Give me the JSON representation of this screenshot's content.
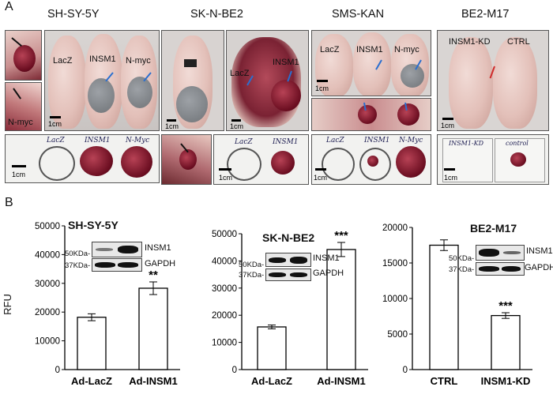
{
  "panel_labels": {
    "a": "A",
    "b": "B"
  },
  "panel_a": {
    "columns": [
      {
        "title": "SH-SY-5Y",
        "mouse_labels": [
          "LacZ",
          "INSM1",
          "N-myc"
        ],
        "inset_label": "N-myc",
        "tube_labels": [
          "LacZ",
          "INSM1",
          "N-Myc"
        ],
        "scale": "1cm"
      },
      {
        "title": "SK-N-BE2",
        "mouse_labels": [
          "LacZ",
          "INSM1"
        ],
        "tube_labels": [
          "LacZ",
          "INSM1"
        ],
        "scale": "1cm"
      },
      {
        "title": "SMS-KAN",
        "mouse_labels": [
          "LacZ",
          "INSM1",
          "N-myc"
        ],
        "tube_labels": [
          "LacZ",
          "INSM1",
          "N-Myc"
        ],
        "scale": "1cm"
      },
      {
        "title": "BE2-M17",
        "mouse_labels": [
          "INSM1-KD",
          "CTRL"
        ],
        "tube_labels": [
          "INSM1-KD",
          "control"
        ],
        "scale": "1cm"
      }
    ]
  },
  "panel_b": {
    "ylabel": "RFU",
    "blot_labels": {
      "insm1": "INSM1",
      "gapdh": "GAPDH",
      "kda50": "50KDa-",
      "kda37": "37KDa-"
    }
  },
  "chart_data": [
    {
      "type": "bar",
      "title": "SH-SY-5Y",
      "categories": [
        "Ad-LacZ",
        "Ad-INSM1"
      ],
      "values": [
        18200,
        28300
      ],
      "errors": [
        1200,
        2200
      ],
      "significance": [
        "",
        "**"
      ],
      "ylabel": "RFU",
      "ylim": [
        0,
        50000
      ],
      "yticks": [
        "0",
        "10000",
        "20000",
        "30000",
        "40000",
        "50000"
      ],
      "ytick_values": [
        0,
        10000,
        20000,
        30000,
        40000,
        50000
      ]
    },
    {
      "type": "bar",
      "title": "SK-N-BE2",
      "categories": [
        "Ad-LacZ",
        "Ad-INSM1"
      ],
      "values": [
        15700,
        44200
      ],
      "errors": [
        700,
        2600
      ],
      "significance": [
        "",
        "***"
      ],
      "ylabel": "",
      "ylim": [
        0,
        50000
      ],
      "yticks": [
        "0",
        "10000",
        "20000",
        "30000",
        "40000",
        "50000"
      ],
      "ytick_values": [
        0,
        10000,
        20000,
        30000,
        40000,
        50000
      ]
    },
    {
      "type": "bar",
      "title": "BE2-M17",
      "categories": [
        "CTRL",
        "INSM1-KD"
      ],
      "values": [
        17500,
        7600
      ],
      "errors": [
        750,
        400
      ],
      "significance": [
        "",
        "***"
      ],
      "ylabel": "",
      "ylim": [
        0,
        20000
      ],
      "yticks": [
        "0",
        "5000",
        "10000",
        "15000",
        "20000"
      ],
      "ytick_values": [
        0,
        5000,
        10000,
        15000,
        20000
      ]
    }
  ]
}
